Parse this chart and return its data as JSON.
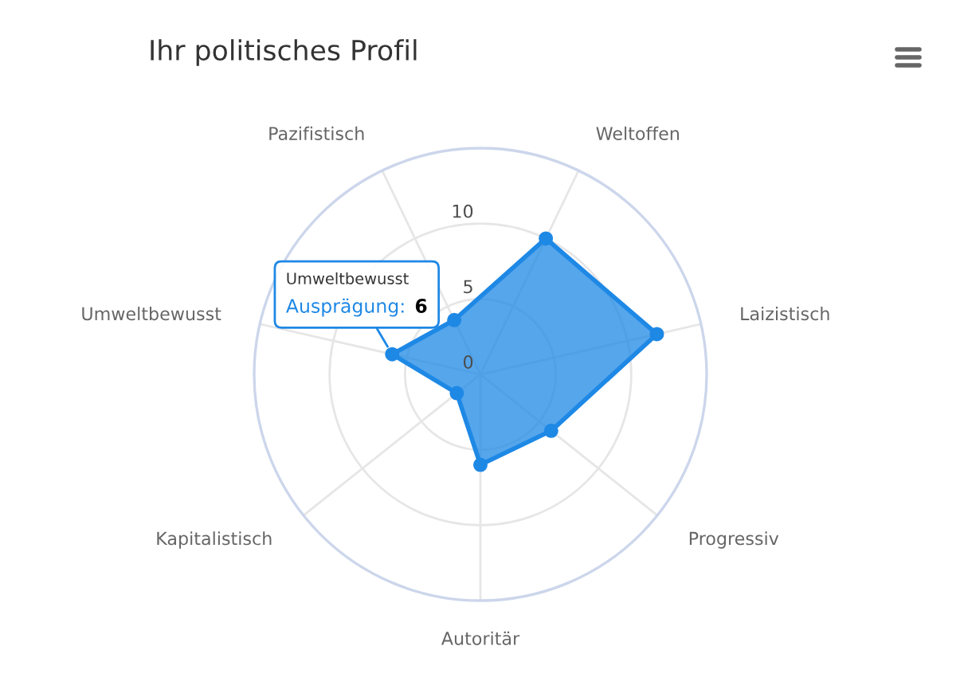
{
  "chart_data": {
    "type": "radar",
    "title": "Ihr politisches Profil",
    "categories": [
      "Weltoffen",
      "Laizistisch",
      "Progressiv",
      "Autoritär",
      "Kapitalistisch",
      "Umweltbewusst",
      "Pazifistisch"
    ],
    "series": [
      {
        "color": "#1e88e5",
        "values": [
          10,
          12,
          6,
          6,
          2,
          6,
          4
        ]
      }
    ],
    "ylim": [
      0,
      15
    ],
    "yticks": [
      0,
      5,
      10
    ],
    "grid": true,
    "marker": "circle",
    "annotations": [
      {
        "text": "Umweltbewusst\nAusprägung: 6",
        "x": "Umweltbewusst"
      }
    ]
  }
}
